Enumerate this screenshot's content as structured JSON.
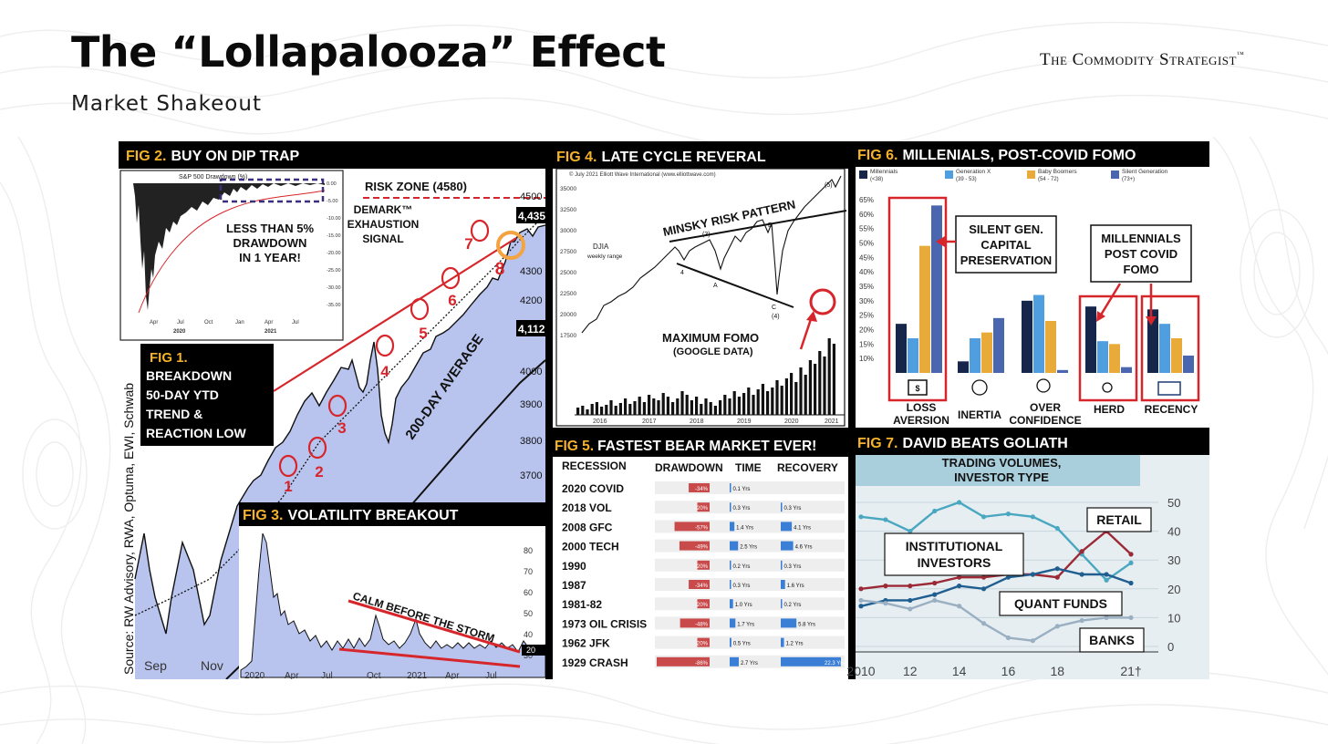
{
  "header": {
    "title": "The “Lollapalooza” Effect",
    "subtitle": "Market Shakeout",
    "brand": "The Commodity Strategist",
    "brand_tm": "™"
  },
  "colors": {
    "fig_number": "#f5b22b",
    "panel_black": "#000000",
    "chart_fill": "#b8c4ee",
    "accent_red": "#d7262b",
    "callout_orange": "#f4a341"
  },
  "fig2": {
    "title_prefix": "FIG 2.",
    "title_text": "BUY ON DIP TRAP",
    "inset_title": "S&P 500 Drawdown (%)",
    "inset_callout": [
      "LESS THAN 5%",
      "DRAWDOWN",
      "IN 1 YEAR!"
    ],
    "inset_x_ticks": [
      "Apr",
      "Jul",
      "Oct",
      "Jan",
      "Apr",
      "Jul"
    ],
    "inset_year_ticks": [
      "2020",
      "2021"
    ],
    "inset_y_ticks": [
      "0.00",
      "-5.00",
      "-10.00",
      "-15.00",
      "-20.00",
      "-25.00",
      "-30.00",
      "-35.00"
    ],
    "risk_zone": "RISK ZONE (4580)",
    "demark": [
      "DEMARK™",
      "EXHAUSTION",
      "SIGNAL"
    ],
    "avg_label": "200-DAY AVERAGE",
    "points": [
      "1",
      "2",
      "3",
      "4",
      "5",
      "6",
      "7",
      "8"
    ],
    "y_ticks": [
      "4500",
      "4,435",
      "4300",
      "4200",
      "4,112",
      "4000",
      "3900",
      "3800",
      "3700"
    ],
    "x_ticks": [
      "Sep",
      "Nov"
    ],
    "source": "Source: RW Advisory, RWA, Optuma, EWI, Schwab"
  },
  "fig1": {
    "title_prefix": "FIG 1.",
    "lines": [
      "BREAKDOWN",
      "50-DAY YTD",
      "TREND &",
      "REACTION LOW"
    ]
  },
  "fig3": {
    "title_prefix": "FIG 3.",
    "title_text": "VOLATILITY BREAKOUT",
    "annotation": "CALM BEFORE THE STORM",
    "x_ticks": [
      "2020",
      "Apr",
      "Jul",
      "Oct",
      "2021",
      "Apr",
      "Jul"
    ],
    "y_ticks": [
      "80",
      "70",
      "60",
      "50",
      "40",
      "30",
      "20"
    ]
  },
  "fig4": {
    "title_prefix": "FIG 4.",
    "title_text": "LATE CYCLE REVERAL",
    "copyright": "© July 2021 Elliott Wave International (www.elliottwave.com)",
    "djia_label": [
      "DJIA",
      "weekly range"
    ],
    "pattern_label": "MINSKY RISK PATTERN",
    "fomo_label": "MAXIMUM FOMO",
    "fomo_source": "(GOOGLE DATA)",
    "wave_labels": [
      "(5)",
      "(3)",
      "B",
      "4",
      "A",
      "C",
      "(4)"
    ],
    "y_ticks": [
      "35000",
      "32500",
      "30000",
      "27500",
      "25000",
      "22500",
      "20000",
      "17500"
    ],
    "x_ticks": [
      "2016",
      "2017",
      "2018",
      "2019",
      "2020",
      "2021"
    ]
  },
  "fig5": {
    "title_prefix": "FIG 5.",
    "title_text": "FASTEST BEAR MARKET EVER!",
    "columns": [
      "RECESSION",
      "DRAWDOWN",
      "TIME",
      "RECOVERY"
    ],
    "rows": [
      {
        "name": "2020 COVID",
        "drawdown": -34,
        "drawdown_label": "-34%",
        "time_label": "0.1 Yrs",
        "time": 0.1,
        "recovery_label": "",
        "recovery": 0
      },
      {
        "name": "2018 VOL",
        "drawdown": -20,
        "drawdown_label": "-20%",
        "time_label": "0.3 Yrs",
        "time": 0.3,
        "recovery_label": "0.3 Yrs",
        "recovery": 0.3
      },
      {
        "name": "2008 GFC",
        "drawdown": -57,
        "drawdown_label": "-57%",
        "time_label": "1.4 Yrs",
        "time": 1.4,
        "recovery_label": "4.1 Yrs",
        "recovery": 4.1
      },
      {
        "name": "2000 TECH",
        "drawdown": -49,
        "drawdown_label": "-49%",
        "time_label": "2.5 Yrs",
        "time": 2.5,
        "recovery_label": "4.6 Yrs",
        "recovery": 4.6
      },
      {
        "name": "1990",
        "drawdown": -20,
        "drawdown_label": "-20%",
        "time_label": "0.2 Yrs",
        "time": 0.2,
        "recovery_label": "0.3 Yrs",
        "recovery": 0.3
      },
      {
        "name": "1987",
        "drawdown": -34,
        "drawdown_label": "-34%",
        "time_label": "0.3 Yrs",
        "time": 0.3,
        "recovery_label": "1.6 Yrs",
        "recovery": 1.6
      },
      {
        "name": "1981-82",
        "drawdown": -20,
        "drawdown_label": "-20%",
        "time_label": "1.0 Yrs",
        "time": 1.0,
        "recovery_label": "0.2 Yrs",
        "recovery": 0.2
      },
      {
        "name": "1973 OIL CRISIS",
        "drawdown": -48,
        "drawdown_label": "-48%",
        "time_label": "1.7 Yrs",
        "time": 1.7,
        "recovery_label": "5.8 Yrs",
        "recovery": 5.8
      },
      {
        "name": "1962 JFK",
        "drawdown": -20,
        "drawdown_label": "-20%",
        "time_label": "0.5 Yrs",
        "time": 0.5,
        "recovery_label": "1.2 Yrs",
        "recovery": 1.2
      },
      {
        "name": "1929 CRASH",
        "drawdown": -86,
        "drawdown_label": "-86%",
        "time_label": "2.7 Yrs",
        "time": 2.7,
        "recovery_label": "22.3 Yrs",
        "recovery": 22.3
      }
    ]
  },
  "fig6": {
    "title_prefix": "FIG 6.",
    "title_text": "MILLENIALS, POST-COVID FOMO",
    "legend": [
      {
        "name": "Millennials",
        "sub": "(<38)",
        "color": "#16254a"
      },
      {
        "name": "Generation X",
        "sub": "(39 - 53)",
        "color": "#4f9fe0"
      },
      {
        "name": "Baby Boomers",
        "sub": "(54 - 72)",
        "color": "#e8aa38"
      },
      {
        "name": "Silent Generation",
        "sub": "(73+)",
        "color": "#4a66ae"
      }
    ],
    "y_ticks": [
      "65%",
      "60%",
      "55%",
      "50%",
      "45%",
      "40%",
      "35%",
      "30%",
      "25%",
      "20%",
      "15%",
      "10%"
    ],
    "callout_silent": [
      "SILENT GEN.",
      "CAPITAL",
      "PRESERVATION"
    ],
    "callout_millennials": [
      "MILLENNIALS",
      "POST COVID",
      "FOMO"
    ],
    "categories": [
      "LOSS AVERSION",
      "INERTIA",
      "OVER CONFIDENCE",
      "HERD",
      "RECENCY"
    ]
  },
  "fig7": {
    "title_prefix": "FIG 7.",
    "title_text": "DAVID BEATS GOLIATH",
    "chart_title": [
      "TRADING VOLUMES,",
      "INVESTOR TYPE"
    ],
    "labels": {
      "retail": "RETAIL",
      "institutional": [
        "INSTITUTIONAL",
        "INVESTORS"
      ],
      "quant": "QUANT FUNDS",
      "banks": "BANKS"
    },
    "footnote_mark": "†"
  },
  "chart_data": [
    {
      "type": "line",
      "title": "FIG 7. DAVID BEATS GOLIATH — TRADING VOLUMES, INVESTOR TYPE",
      "x": [
        2010,
        2011,
        2012,
        2013,
        2014,
        2015,
        2016,
        2017,
        2018,
        2019,
        2020,
        2021
      ],
      "x_tick_labels": [
        "2010",
        "12",
        "14",
        "16",
        "18",
        "21†"
      ],
      "ylim": [
        0,
        50
      ],
      "y_ticks": [
        "50",
        "40",
        "30",
        "20",
        "10",
        "0"
      ],
      "series": [
        {
          "name": "INSTITUTIONAL INVESTORS",
          "color": "#4aa7c0",
          "values": [
            45,
            44,
            40,
            47,
            50,
            45,
            46,
            45,
            41,
            32,
            23,
            29
          ]
        },
        {
          "name": "RETAIL",
          "color": "#9b2a36",
          "values": [
            20,
            21,
            21,
            22,
            24,
            24,
            25,
            25,
            24,
            33,
            40,
            32
          ]
        },
        {
          "name": "QUANT FUNDS",
          "color": "#1f5e8f",
          "values": [
            14,
            16,
            16,
            18,
            21,
            20,
            24,
            25,
            27,
            25,
            25,
            22
          ]
        },
        {
          "name": "BANKS",
          "color": "#9ab0c2",
          "values": [
            16,
            15,
            13,
            16,
            14,
            8,
            3,
            2,
            7,
            9,
            10,
            10
          ]
        }
      ]
    },
    {
      "type": "bar",
      "title": "FIG 6. MILLENIALS, POST-COVID FOMO",
      "categories": [
        "LOSS AVERSION",
        "INERTIA",
        "OVER CONFIDENCE",
        "HERD",
        "RECENCY"
      ],
      "ylim": [
        5,
        65
      ],
      "series": [
        {
          "name": "Millennials",
          "values": [
            22,
            9,
            30,
            28,
            27
          ]
        },
        {
          "name": "Generation X",
          "values": [
            17,
            17,
            32,
            16,
            22
          ]
        },
        {
          "name": "Baby Boomers",
          "values": [
            49,
            19,
            23,
            15,
            17
          ]
        },
        {
          "name": "Silent Generation",
          "values": [
            63,
            24,
            6,
            7,
            11
          ]
        }
      ]
    }
  ]
}
